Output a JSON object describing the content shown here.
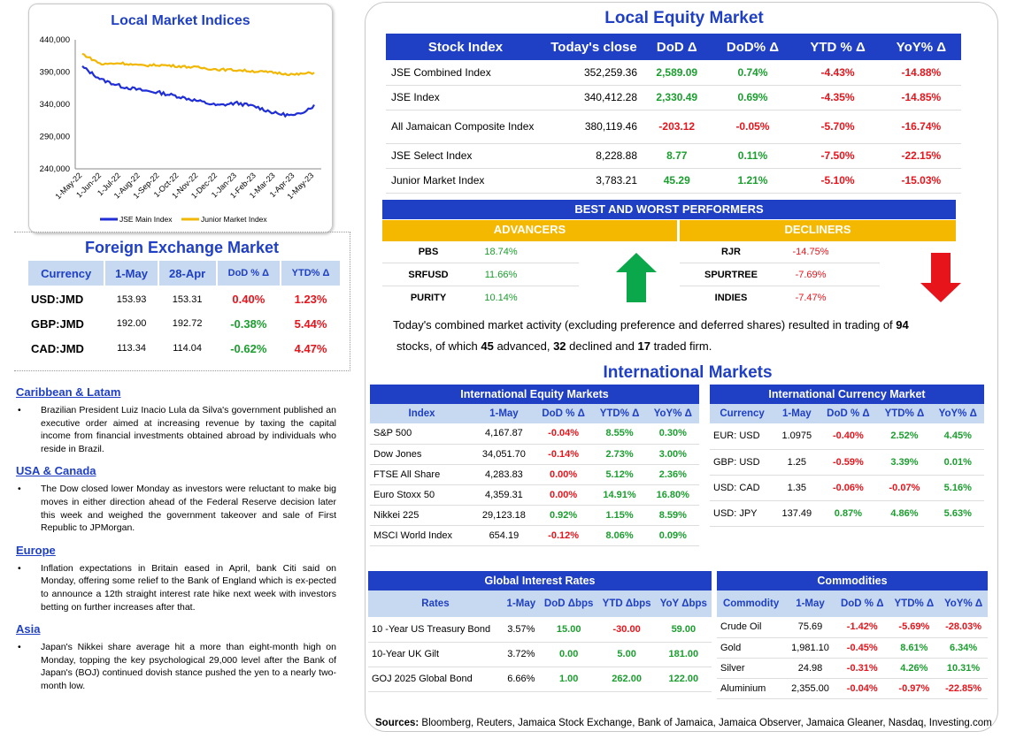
{
  "chart": {
    "title": "Local Market Indices",
    "colors": {
      "jse_main": "#1f2ed6",
      "junior": "#f2b705"
    }
  },
  "chart_data": {
    "type": "line",
    "title": "Local Market Indices",
    "x": [
      "1-May-22",
      "1-Jun-22",
      "1-Jul-22",
      "1-Aug-22",
      "1-Sep-22",
      "1-Oct-22",
      "1-Nov-22",
      "1-Dec-22",
      "1-Jan-23",
      "1-Feb-23",
      "1-Mar-23",
      "1-Apr-23",
      "1-May-23"
    ],
    "yticks": [
      "440,000",
      "390,000",
      "340,000",
      "290,000",
      "240,000"
    ],
    "ylim": [
      240000,
      440000
    ],
    "series": [
      {
        "name": "JSE Main Index",
        "color": "#1f2ed6",
        "values": [
          398000,
          378000,
          368000,
          362000,
          358000,
          352000,
          345000,
          338000,
          342000,
          336000,
          326000,
          322000,
          338000
        ]
      },
      {
        "name": "Junior Market Index",
        "color": "#f2b705",
        "values": [
          418000,
          402000,
          404000,
          400000,
          401000,
          399000,
          397000,
          394000,
          393000,
          391000,
          389000,
          386000,
          389000
        ]
      }
    ],
    "legend": "bottom"
  },
  "fx": {
    "title": "Foreign Exchange Market",
    "headers": [
      "Currency",
      "1-May",
      "28-Apr",
      "DoD % Δ",
      "YTD% Δ"
    ],
    "rows": [
      {
        "pair": "USD:JMD",
        "c1": "153.93",
        "c2": "153.31",
        "dod": "0.40%",
        "ytd": "1.23%",
        "dod_s": "neg",
        "ytd_s": "neg"
      },
      {
        "pair": "GBP:JMD",
        "c1": "192.00",
        "c2": "192.72",
        "dod": "-0.38%",
        "ytd": "5.44%",
        "dod_s": "pos",
        "ytd_s": "neg"
      },
      {
        "pair": "CAD:JMD",
        "c1": "113.34",
        "c2": "114.04",
        "dod": "-0.62%",
        "ytd": "4.47%",
        "dod_s": "pos",
        "ytd_s": "neg"
      }
    ]
  },
  "news": [
    {
      "heading": "Caribbean & Latam",
      "text": "Brazilian President Luiz Inacio Lula da Silva's government published an executive order aimed at increasing revenue by taxing the capital income from financial investments obtained abroad by individuals who reside in Brazil."
    },
    {
      "heading": "USA & Canada",
      "text": "The Dow closed lower Monday as investors were reluctant to make big moves in either direction ahead of the Federal Reserve decision later this week and weighed the government takeover and sale of First Republic to JPMorgan."
    },
    {
      "heading": "Europe",
      "text": "Inflation expectations in Britain eased in April, bank Citi said on Monday, offering some relief to the Bank of England which is ex-pected to announce a 12th straight interest rate hike next week with investors betting on further increases after that."
    },
    {
      "heading": "Asia",
      "text": "Japan's Nikkei share average hit a more than eight-month high on Monday, topping the key psychological 29,000 level after the Bank of Japan's (BOJ) continued dovish stance pushed the yen to a nearly two-month low."
    }
  ],
  "equity": {
    "title": "Local Equity Market",
    "headers": [
      "Stock Index",
      "Today's close",
      "DoD  Δ",
      "DoD% Δ",
      "YTD % Δ",
      "YoY% Δ"
    ],
    "rows": [
      {
        "name": "JSE Combined Index",
        "close": "352,259.36",
        "dod": "2,589.09",
        "dodp": "0.74%",
        "ytd": "-4.43%",
        "yoy": "-14.88%",
        "s": "pos"
      },
      {
        "name": "JSE Index",
        "close": "340,412.28",
        "dod": "2,330.49",
        "dodp": "0.69%",
        "ytd": "-4.35%",
        "yoy": "-14.85%",
        "s": "pos"
      },
      {
        "name": "All Jamaican Composite Index",
        "close": "380,119.46",
        "dod": "-203.12",
        "dodp": "-0.05%",
        "ytd": "-5.70%",
        "yoy": "-16.74%",
        "s": "neg"
      },
      {
        "name": "JSE Select Index",
        "close": "8,228.88",
        "dod": "8.77",
        "dodp": "0.11%",
        "ytd": "-7.50%",
        "yoy": "-22.15%",
        "s": "pos"
      },
      {
        "name": "Junior Market Index",
        "close": "3,783.21",
        "dod": "45.29",
        "dodp": "1.21%",
        "ytd": "-5.10%",
        "yoy": "-15.03%",
        "s": "pos"
      }
    ]
  },
  "best_worst": {
    "title": "BEST AND WORST PERFORMERS",
    "adv_label": "ADVANCERS",
    "dec_label": "DECLINERS",
    "advancers": [
      {
        "name": "PBS",
        "pct": "18.74%"
      },
      {
        "name": "SRFUSD",
        "pct": "11.66%"
      },
      {
        "name": "PURITY",
        "pct": "10.14%"
      }
    ],
    "decliners": [
      {
        "name": "RJR",
        "pct": "-14.75%"
      },
      {
        "name": "SPURTREE",
        "pct": "-7.69%"
      },
      {
        "name": "INDIES",
        "pct": "-7.47%"
      }
    ]
  },
  "summary": {
    "p1": "Today's combined market activity (excluding preference and deferred shares) resulted in trading of ",
    "n_total": "94",
    "p2": "stocks, of which ",
    "n_adv": "45",
    "p3": " advanced, ",
    "n_dec": "32",
    "p4": " declined and ",
    "n_firm": "17",
    "p5": " traded firm."
  },
  "intl": {
    "title": "International Markets",
    "equity": {
      "title": "International Equity Markets",
      "headers": [
        "Index",
        "1-May",
        "DoD % Δ",
        "YTD% Δ",
        "YoY% Δ"
      ],
      "rows": [
        {
          "name": "S&P 500",
          "v": "4,167.87",
          "dod": "-0.04%",
          "ytd": "8.55%",
          "yoy": "0.30%",
          "s": [
            "neg",
            "pos",
            "pos"
          ]
        },
        {
          "name": "Dow Jones",
          "v": "34,051.70",
          "dod": "-0.14%",
          "ytd": "2.73%",
          "yoy": "3.00%",
          "s": [
            "neg",
            "pos",
            "pos"
          ]
        },
        {
          "name": "FTSE All Share",
          "v": "4,283.83",
          "dod": "0.00%",
          "ytd": "5.12%",
          "yoy": "2.36%",
          "s": [
            "neg",
            "pos",
            "pos"
          ]
        },
        {
          "name": "Euro Stoxx 50",
          "v": "4,359.31",
          "dod": "0.00%",
          "ytd": "14.91%",
          "yoy": "16.80%",
          "s": [
            "neg",
            "pos",
            "pos"
          ]
        },
        {
          "name": "Nikkei 225",
          "v": "29,123.18",
          "dod": "0.92%",
          "ytd": "1.15%",
          "yoy": "8.59%",
          "s": [
            "pos",
            "pos",
            "pos"
          ]
        },
        {
          "name": "MSCI World Index",
          "v": "654.19",
          "dod": "-0.12%",
          "ytd": "8.06%",
          "yoy": "0.09%",
          "s": [
            "neg",
            "pos",
            "pos"
          ]
        }
      ]
    },
    "currency": {
      "title": "International Currency Market",
      "headers": [
        "Currency",
        "1-May",
        "DoD % Δ",
        "YTD% Δ",
        "YoY% Δ"
      ],
      "rows": [
        {
          "name": "EUR: USD",
          "v": "1.0975",
          "dod": "-0.40%",
          "ytd": "2.52%",
          "yoy": "4.45%",
          "s": [
            "neg",
            "pos",
            "pos"
          ]
        },
        {
          "name": "GBP: USD",
          "v": "1.25",
          "dod": "-0.59%",
          "ytd": "3.39%",
          "yoy": "0.01%",
          "s": [
            "neg",
            "pos",
            "pos"
          ]
        },
        {
          "name": "USD: CAD",
          "v": "1.35",
          "dod": "-0.06%",
          "ytd": "-0.07%",
          "yoy": "5.16%",
          "s": [
            "neg",
            "neg",
            "pos"
          ]
        },
        {
          "name": "USD: JPY",
          "v": "137.49",
          "dod": "0.87%",
          "ytd": "4.86%",
          "yoy": "5.63%",
          "s": [
            "pos",
            "pos",
            "pos"
          ]
        }
      ]
    },
    "rates": {
      "title": "Global Interest Rates",
      "headers": [
        "Rates",
        "1-May",
        "DoD Δbps",
        "YTD Δbps",
        "YoY Δbps"
      ],
      "rows": [
        {
          "name": "10 -Year US Treasury Bond",
          "v": "3.57%",
          "dod": "15.00",
          "ytd": "-30.00",
          "yoy": "59.00",
          "s": [
            "pos",
            "neg",
            "pos"
          ]
        },
        {
          "name": "10-Year UK Gilt",
          "v": "3.72%",
          "dod": "0.00",
          "ytd": "5.00",
          "yoy": "181.00",
          "s": [
            "pos",
            "pos",
            "pos"
          ]
        },
        {
          "name": "GOJ 2025 Global Bond",
          "v": "6.66%",
          "dod": "1.00",
          "ytd": "262.00",
          "yoy": "122.00",
          "s": [
            "pos",
            "pos",
            "pos"
          ]
        }
      ]
    },
    "commodities": {
      "title": "Commodities",
      "headers": [
        "Commodity",
        "1-May",
        "DoD % Δ",
        "YTD% Δ",
        "YoY% Δ"
      ],
      "rows": [
        {
          "name": "Crude Oil",
          "v": "75.69",
          "dod": "-1.42%",
          "ytd": "-5.69%",
          "yoy": "-28.03%",
          "s": [
            "neg",
            "neg",
            "neg"
          ]
        },
        {
          "name": "Gold",
          "v": "1,981.10",
          "dod": "-0.45%",
          "ytd": "8.61%",
          "yoy": "6.34%",
          "s": [
            "neg",
            "pos",
            "pos"
          ]
        },
        {
          "name": "Silver",
          "v": "24.98",
          "dod": "-0.31%",
          "ytd": "4.26%",
          "yoy": "10.31%",
          "s": [
            "neg",
            "pos",
            "pos"
          ]
        },
        {
          "name": "Aluminium",
          "v": "2,355.00",
          "dod": "-0.04%",
          "ytd": "-0.97%",
          "yoy": "-22.85%",
          "s": [
            "neg",
            "neg",
            "neg"
          ]
        }
      ]
    }
  },
  "sources": {
    "label": "Sources:",
    "text": " Bloomberg, Reuters, Jamaica Stock Exchange, Bank of Jamaica, Jamaica Observer, Jamaica Gleaner, Nasdaq, Investing.com"
  }
}
